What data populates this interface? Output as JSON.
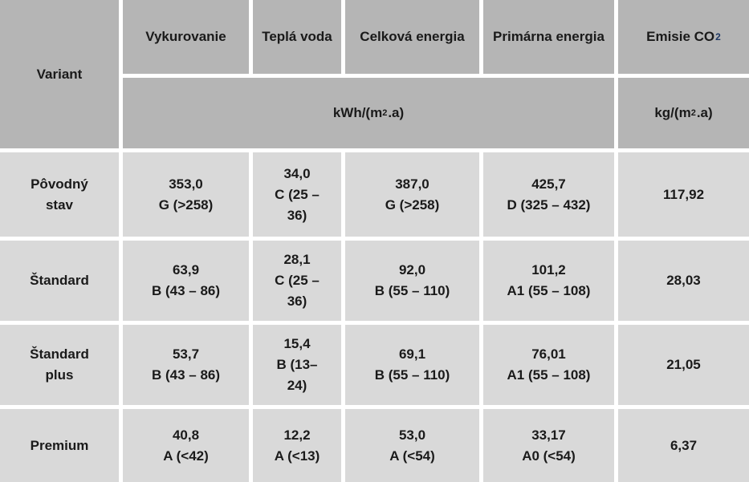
{
  "table": {
    "corner_header": "Variant",
    "columns": [
      "Vykurovanie",
      "Teplá voda",
      "Celková energia",
      "Primárna energia"
    ],
    "emisie_header": {
      "prefix": "Emisie CO",
      "sub": "2"
    },
    "units": {
      "kwh": {
        "prefix": "kWh/(m",
        "sup": "2",
        "suffix": ".a)"
      },
      "kg": {
        "prefix": "kg/(m",
        "sup": "2",
        "suffix": ".a)"
      }
    },
    "rows": [
      {
        "variant": [
          "Pôvodný",
          "stav"
        ],
        "vykurovanie": [
          "353,0",
          "G (>258)"
        ],
        "tepla_voda": [
          "34,0",
          "C (25 –",
          "36)"
        ],
        "celkova_energia": [
          "387,0",
          "G (>258)"
        ],
        "primarna_energia": [
          "425,7",
          "D (325 – 432)"
        ],
        "emisie_co2": "117,92"
      },
      {
        "variant": [
          "Štandard"
        ],
        "vykurovanie": [
          "63,9",
          "B (43 – 86)"
        ],
        "tepla_voda": [
          "28,1",
          "C (25 –",
          "36)"
        ],
        "celkova_energia": [
          "92,0",
          "B (55 – 110)"
        ],
        "primarna_energia": [
          "101,2",
          "A1 (55 – 108)"
        ],
        "emisie_co2": "28,03"
      },
      {
        "variant": [
          "Štandard",
          "plus"
        ],
        "vykurovanie": [
          "53,7",
          "B (43 – 86)"
        ],
        "tepla_voda": [
          "15,4",
          "B (13–",
          "24)"
        ],
        "celkova_energia": [
          "69,1",
          "B (55 – 110)"
        ],
        "primarna_energia": [
          "76,01",
          "A1 (55 – 108)"
        ],
        "emisie_co2": "21,05"
      },
      {
        "variant": [
          "Premium"
        ],
        "vykurovanie": [
          "40,8",
          "A (<42)"
        ],
        "tepla_voda": [
          "12,2",
          "A (<13)"
        ],
        "celkova_energia": [
          "53,0",
          "A (<54)"
        ],
        "primarna_energia": [
          "33,17",
          "A0 (<54)"
        ],
        "emisie_co2": "6,37"
      }
    ],
    "colors": {
      "header_bg": "#b5b5b5",
      "body_bg": "#d9d9d9",
      "grid_line": "#ffffff",
      "text": "#1a1a1a",
      "co2_subscript": "#1f3864"
    }
  }
}
